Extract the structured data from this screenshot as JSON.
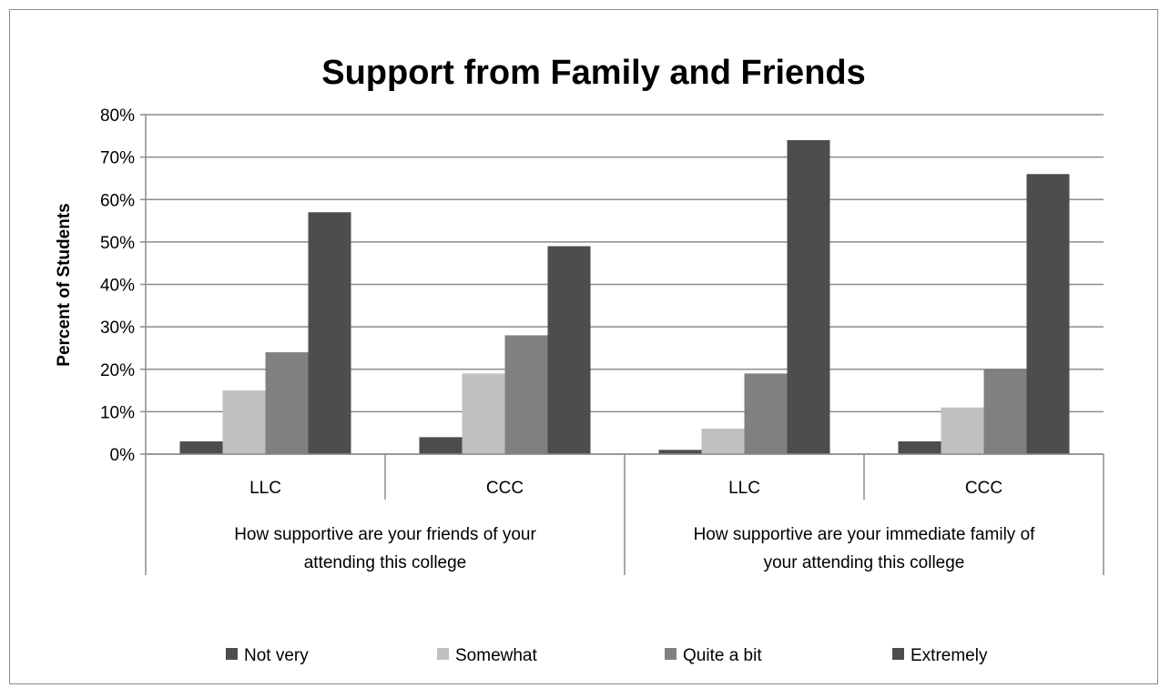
{
  "chart_data": {
    "type": "bar",
    "title": "Support from Family and Friends",
    "ylabel": "Percent of Students",
    "xlabel": "",
    "ylim": [
      0,
      80
    ],
    "yticks": [
      "0%",
      "10%",
      "20%",
      "30%",
      "40%",
      "50%",
      "60%",
      "70%",
      "80%"
    ],
    "grid": true,
    "legend_position": "bottom",
    "groups": [
      {
        "label_lines": [
          "How supportive are your friends of your",
          "attending this college"
        ],
        "categories": [
          "LLC",
          "CCC"
        ]
      },
      {
        "label_lines": [
          "How supportive are your immediate family of",
          "your attending this college"
        ],
        "categories": [
          "LLC",
          "CCC"
        ]
      }
    ],
    "categories": [
      "LLC",
      "CCC",
      "LLC",
      "CCC"
    ],
    "series": [
      {
        "name": "Not very",
        "color": "#4d4d4d",
        "values": [
          3,
          4,
          1,
          3
        ]
      },
      {
        "name": "Somewhat",
        "color": "#c0c0c0",
        "values": [
          15,
          19,
          6,
          11
        ]
      },
      {
        "name": "Quite a bit",
        "color": "#808080",
        "values": [
          24,
          28,
          19,
          20
        ]
      },
      {
        "name": "Extremely",
        "color": "#4d4d4d",
        "values": [
          57,
          49,
          74,
          66
        ]
      }
    ]
  }
}
